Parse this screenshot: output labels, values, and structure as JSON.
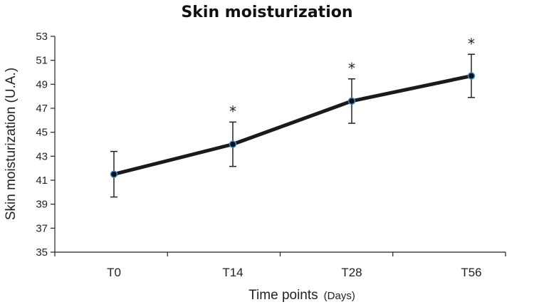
{
  "chart_data": {
    "type": "line",
    "title": "Skin moisturization",
    "xlabel": "Time points",
    "xlabel_unit": "(Days)",
    "ylabel": "Skin moisturization (U.A.)",
    "categories": [
      "T0",
      "T14",
      "T28",
      "T56"
    ],
    "series": [
      {
        "name": "Skin moisturization",
        "values": [
          41.5,
          44.0,
          47.6,
          49.7
        ],
        "error": [
          1.9,
          1.85,
          1.85,
          1.8
        ],
        "significance": [
          "",
          "*",
          "*",
          "*"
        ]
      }
    ],
    "ylim": [
      35,
      53
    ],
    "yticks": [
      "35",
      "37",
      "39",
      "41",
      "43",
      "45",
      "47",
      "49",
      "51",
      "53"
    ],
    "grid": false,
    "line_color": "#1a1a1a",
    "marker_color": "#0d0d0d",
    "marker_edge_color": "#3a8fd6"
  }
}
